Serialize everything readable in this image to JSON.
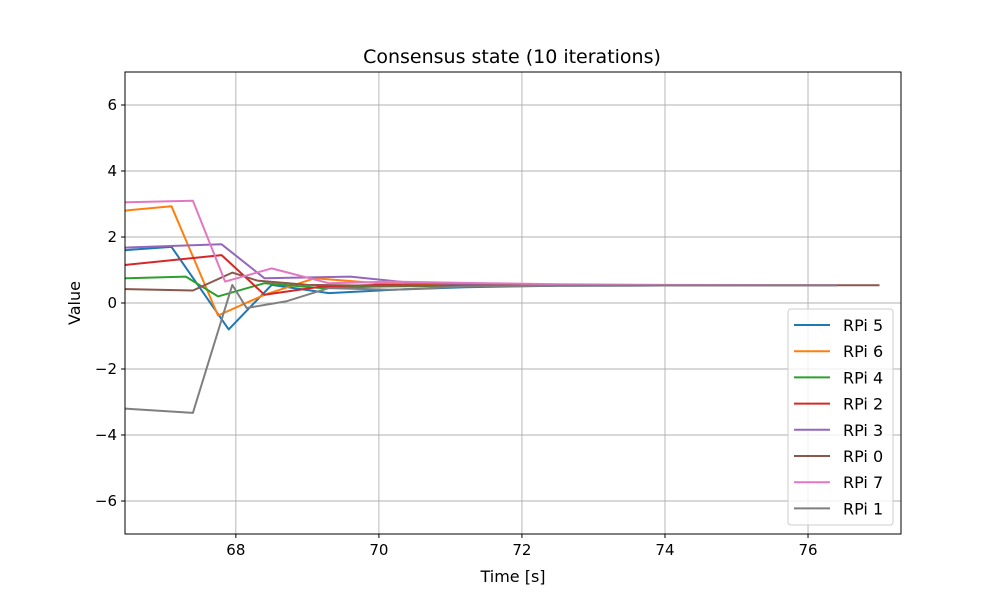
{
  "chart_data": {
    "type": "line",
    "title": "Consensus state (10 iterations)",
    "xlabel": "Time [s]",
    "ylabel": "Value",
    "xlim": [
      66.45,
      77.3
    ],
    "ylim": [
      -7,
      7
    ],
    "xticks": [
      68,
      70,
      72,
      74,
      76
    ],
    "yticks": [
      -6,
      -4,
      -2,
      0,
      2,
      4,
      6
    ],
    "xtick_labels": [
      "68",
      "70",
      "72",
      "74",
      "76"
    ],
    "ytick_labels": [
      "−6",
      "−4",
      "−2",
      "0",
      "2",
      "4",
      "6"
    ],
    "grid": true,
    "legend_position": "lower-right",
    "series": [
      {
        "name": "RPi 5",
        "color": "#1f77b4",
        "x": [
          66.45,
          67.1,
          67.9,
          68.5,
          69.3,
          70.2,
          71.2,
          72.5,
          74.0,
          75.5,
          76.4
        ],
        "y": [
          1.6,
          1.7,
          -0.8,
          0.55,
          0.3,
          0.4,
          0.48,
          0.52,
          0.53,
          0.53,
          0.53
        ]
      },
      {
        "name": "RPi 6",
        "color": "#ff7f0e",
        "x": [
          66.45,
          67.1,
          67.75,
          68.4,
          69.1,
          70.0,
          71.0,
          72.5,
          74.0,
          75.5,
          76.4
        ],
        "y": [
          2.8,
          2.93,
          -0.38,
          0.25,
          0.75,
          0.6,
          0.56,
          0.54,
          0.53,
          0.53,
          0.53
        ]
      },
      {
        "name": "RPi 4",
        "color": "#2ca02c",
        "x": [
          66.45,
          67.3,
          67.75,
          68.4,
          69.2,
          70.0,
          71.0,
          72.5,
          74.0,
          75.5,
          76.4
        ],
        "y": [
          0.75,
          0.8,
          0.2,
          0.6,
          0.45,
          0.5,
          0.52,
          0.53,
          0.53,
          0.53,
          0.53
        ]
      },
      {
        "name": "RPi 2",
        "color": "#d62728",
        "x": [
          66.45,
          67.8,
          68.4,
          69.2,
          70.0,
          71.0,
          72.5,
          74.0,
          75.5,
          76.4
        ],
        "y": [
          1.15,
          1.45,
          0.25,
          0.5,
          0.55,
          0.53,
          0.53,
          0.53,
          0.53,
          0.53
        ]
      },
      {
        "name": "RPi 3",
        "color": "#9467bd",
        "x": [
          66.45,
          67.8,
          68.4,
          69.6,
          70.4,
          71.5,
          72.5,
          74.0,
          75.5,
          76.4
        ],
        "y": [
          1.68,
          1.78,
          0.75,
          0.8,
          0.62,
          0.57,
          0.55,
          0.54,
          0.54,
          0.54
        ]
      },
      {
        "name": "RPi 0",
        "color": "#8c564b",
        "x": [
          66.45,
          67.4,
          67.95,
          68.3,
          69.0,
          70.0,
          71.0,
          72.5,
          74.0,
          75.5,
          77.0
        ],
        "y": [
          0.42,
          0.38,
          0.92,
          0.68,
          0.55,
          0.52,
          0.53,
          0.53,
          0.54,
          0.54,
          0.54
        ]
      },
      {
        "name": "RPi 7",
        "color": "#e377c2",
        "x": [
          66.45,
          67.4,
          67.85,
          68.5,
          69.3,
          70.2,
          71.5,
          72.5,
          74.0,
          75.5,
          76.4
        ],
        "y": [
          3.05,
          3.1,
          0.65,
          1.05,
          0.6,
          0.65,
          0.6,
          0.57,
          0.55,
          0.54,
          0.54
        ]
      },
      {
        "name": "RPi 1",
        "color": "#7f7f7f",
        "x": [
          66.45,
          67.4,
          67.95,
          68.15,
          68.7,
          69.3,
          70.2,
          71.2,
          72.5,
          74.0,
          75.5,
          76.4
        ],
        "y": [
          -3.2,
          -3.33,
          0.55,
          -0.15,
          0.05,
          0.45,
          0.4,
          0.5,
          0.52,
          0.53,
          0.53,
          0.53
        ]
      }
    ]
  }
}
